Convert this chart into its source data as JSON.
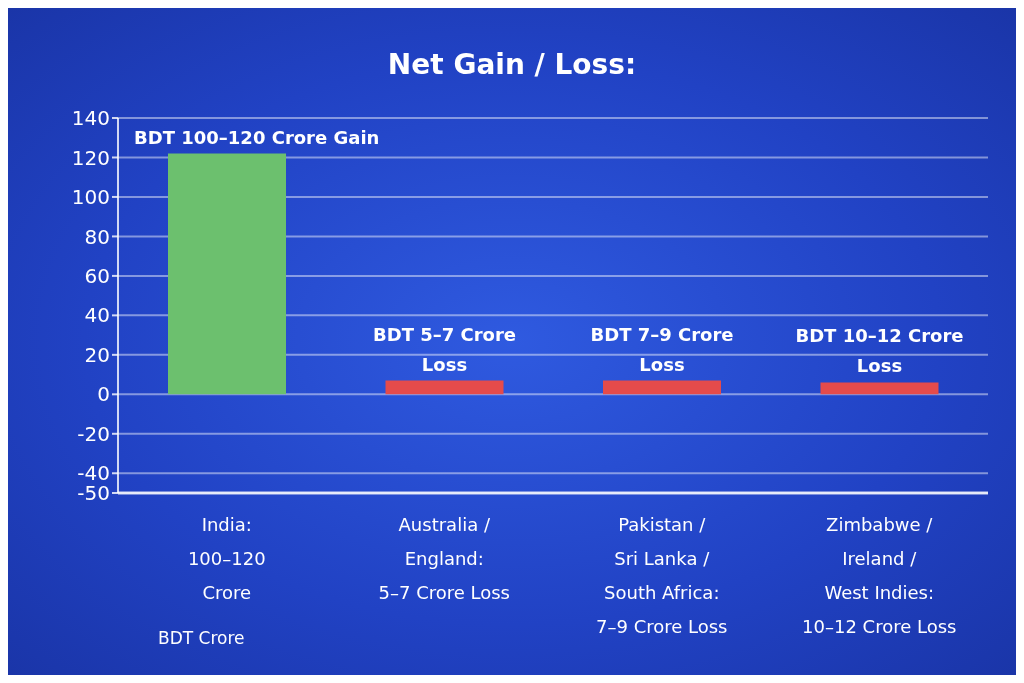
{
  "chart_data": {
    "type": "bar",
    "title": "Net Gain / Loss:",
    "categories": [
      "India:\n100–120\nCrore",
      "Australia /\nEngland:\n5–7 Crore Loss",
      "Pakistan /\nSri Lanka /\nSouth Africa:\n7–9 Crore Loss",
      "Zimbabwe /\nIreland /\nWest Indies:\n10–12 Crore Loss"
    ],
    "values": [
      122,
      7,
      7,
      6
    ],
    "colors": [
      "#6cc06e",
      "#e54b4b",
      "#e54b4b",
      "#e54b4b"
    ],
    "value_labels": [
      "BDT 100–120 Crore Gain",
      "BDT 5–7 Crore\nLoss",
      "BDT 7–9 Crore\nLoss",
      "BDT 10–12 Crore\nLoss"
    ],
    "annotations": [
      "BDT Crore"
    ],
    "ylim": [
      -50,
      140
    ],
    "yticks": [
      -50,
      -40,
      -20,
      0,
      20,
      40,
      60,
      80,
      100,
      120,
      140
    ],
    "grid": "y"
  }
}
